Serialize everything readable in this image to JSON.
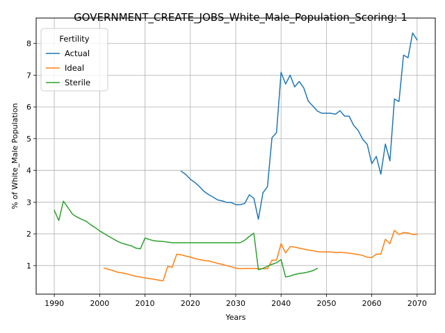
{
  "chart_data": {
    "type": "line",
    "title": "GOVERNMENT_CREATE_JOBS_White_Male_Population_Scoring: 1",
    "xlabel": "Years",
    "ylabel": "% of White_Male Population",
    "xlim": [
      1986,
      2074
    ],
    "ylim": [
      0.1,
      8.8
    ],
    "xticks": [
      1990,
      2000,
      2010,
      2020,
      2030,
      2040,
      2050,
      2060,
      2070
    ],
    "yticks": [
      1,
      2,
      3,
      4,
      5,
      6,
      7,
      8
    ],
    "grid": true,
    "legend": {
      "title": "Fertility",
      "placement": "top-left"
    },
    "series": [
      {
        "name": "Actual",
        "color": "#1f77b4",
        "x": [
          2018,
          2019,
          2020,
          2021,
          2022,
          2023,
          2024,
          2025,
          2026,
          2027,
          2028,
          2029,
          2030,
          2031,
          2032,
          2033,
          2034,
          2035,
          2036,
          2037,
          2038,
          2039,
          2040,
          2041,
          2042,
          2043,
          2044,
          2045,
          2046,
          2047,
          2048,
          2049,
          2050,
          2051,
          2052,
          2053,
          2054,
          2055,
          2056,
          2057,
          2058,
          2059,
          2060,
          2061,
          2062,
          2063,
          2064,
          2065,
          2066,
          2067,
          2068,
          2069,
          2070
        ],
        "y": [
          3.97,
          3.87,
          3.72,
          3.62,
          3.49,
          3.34,
          3.24,
          3.16,
          3.07,
          3.04,
          2.99,
          2.99,
          2.92,
          2.92,
          2.96,
          3.23,
          3.12,
          2.46,
          3.29,
          3.49,
          5.03,
          5.19,
          7.09,
          6.72,
          7.0,
          6.63,
          6.8,
          6.6,
          6.18,
          6.03,
          5.87,
          5.8,
          5.8,
          5.8,
          5.77,
          5.88,
          5.71,
          5.71,
          5.42,
          5.26,
          4.98,
          4.82,
          4.21,
          4.44,
          3.88,
          4.83,
          4.3,
          6.25,
          6.17,
          7.63,
          7.55,
          8.33,
          8.11
        ]
      },
      {
        "name": "Ideal",
        "color": "#ff7f0e",
        "x": [
          2001,
          2002,
          2003,
          2004,
          2005,
          2006,
          2007,
          2008,
          2009,
          2010,
          2011,
          2012,
          2013,
          2014,
          2015,
          2016,
          2017,
          2018,
          2019,
          2020,
          2021,
          2022,
          2023,
          2024,
          2025,
          2026,
          2027,
          2028,
          2029,
          2030,
          2031,
          2032,
          2033,
          2034,
          2035,
          2036,
          2037,
          2038,
          2039,
          2040,
          2041,
          2042,
          2043,
          2044,
          2045,
          2046,
          2047,
          2048,
          2049,
          2050,
          2051,
          2052,
          2053,
          2054,
          2055,
          2056,
          2057,
          2058,
          2059,
          2060,
          2061,
          2062,
          2063,
          2064,
          2065,
          2066,
          2067,
          2068,
          2069,
          2070
        ],
        "y": [
          0.92,
          0.88,
          0.84,
          0.79,
          0.77,
          0.74,
          0.7,
          0.66,
          0.64,
          0.61,
          0.59,
          0.57,
          0.54,
          0.52,
          0.97,
          0.95,
          1.36,
          1.34,
          1.3,
          1.27,
          1.22,
          1.19,
          1.16,
          1.15,
          1.11,
          1.07,
          1.04,
          1.0,
          0.96,
          0.92,
          0.9,
          0.91,
          0.91,
          0.91,
          0.9,
          0.9,
          0.9,
          1.17,
          1.17,
          1.69,
          1.4,
          1.6,
          1.58,
          1.55,
          1.52,
          1.49,
          1.47,
          1.44,
          1.43,
          1.43,
          1.43,
          1.41,
          1.42,
          1.41,
          1.39,
          1.37,
          1.35,
          1.32,
          1.26,
          1.25,
          1.36,
          1.36,
          1.83,
          1.69,
          2.11,
          1.98,
          2.04,
          2.03,
          1.98,
          1.99
        ]
      },
      {
        "name": "Sterile",
        "color": "#2ca02c",
        "x": [
          1990,
          1991,
          1992,
          1993,
          1994,
          1995,
          1996,
          1997,
          1998,
          1999,
          2000,
          2001,
          2002,
          2003,
          2004,
          2005,
          2006,
          2007,
          2008,
          2009,
          2010,
          2011,
          2012,
          2013,
          2014,
          2015,
          2016,
          2017,
          2018,
          2019,
          2020,
          2021,
          2022,
          2023,
          2024,
          2025,
          2026,
          2027,
          2028,
          2029,
          2030,
          2031,
          2032,
          2033,
          2034,
          2035,
          2036,
          2037,
          2038,
          2039,
          2040,
          2041,
          2042,
          2043,
          2044,
          2045,
          2046,
          2047,
          2048
        ],
        "y": [
          2.74,
          2.42,
          3.03,
          2.83,
          2.62,
          2.53,
          2.46,
          2.4,
          2.29,
          2.2,
          2.09,
          2.01,
          1.92,
          1.84,
          1.76,
          1.7,
          1.66,
          1.62,
          1.55,
          1.53,
          1.87,
          1.82,
          1.78,
          1.77,
          1.76,
          1.74,
          1.72,
          1.72,
          1.72,
          1.72,
          1.72,
          1.72,
          1.72,
          1.72,
          1.72,
          1.72,
          1.72,
          1.72,
          1.72,
          1.72,
          1.72,
          1.72,
          1.8,
          1.92,
          2.02,
          0.87,
          0.91,
          0.98,
          1.04,
          1.09,
          1.19,
          0.64,
          0.67,
          0.72,
          0.75,
          0.77,
          0.8,
          0.84,
          0.91
        ]
      }
    ]
  }
}
